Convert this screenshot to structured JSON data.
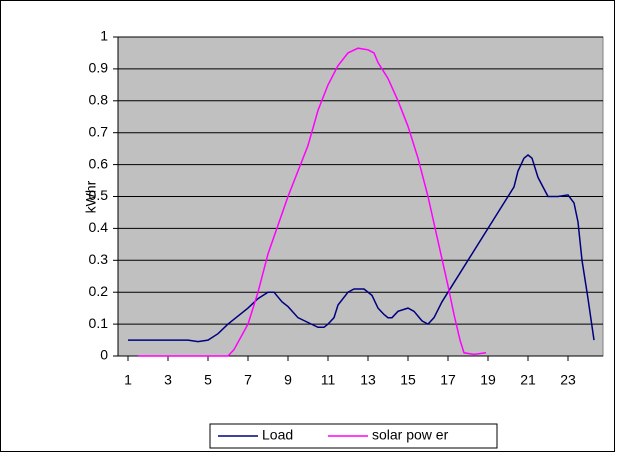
{
  "chart_data": {
    "type": "line",
    "y_label": "kWhr",
    "xlim": [
      0.5,
      24.75
    ],
    "xticks": [
      1,
      3,
      5,
      7,
      9,
      11,
      13,
      15,
      17,
      19,
      21,
      23
    ],
    "ylim": [
      0,
      1
    ],
    "yticks": [
      0,
      0.1,
      0.2,
      0.3,
      0.4,
      0.5,
      0.6,
      0.7,
      0.8,
      0.9,
      1
    ],
    "grid": true,
    "legend": "bottom",
    "series": [
      {
        "name": "Load",
        "color": "#000080",
        "x": [
          1,
          4,
          4.5,
          5,
          5.5,
          6,
          7,
          7.5,
          8,
          8.3,
          8.7,
          9,
          9.5,
          10,
          10.5,
          10.8,
          11,
          11.3,
          11.5,
          12,
          12.3,
          12.8,
          13.2,
          13.5,
          13.8,
          14,
          14.2,
          14.5,
          15,
          15.3,
          15.7,
          16,
          16.3,
          16.7,
          17,
          20,
          20.3,
          20.5,
          20.8,
          21,
          21.2,
          21.5,
          22,
          22.5,
          23,
          23.3,
          23.5,
          23.7,
          24,
          24.3
        ],
        "values": [
          0.05,
          0.05,
          0.045,
          0.05,
          0.07,
          0.1,
          0.15,
          0.18,
          0.2,
          0.2,
          0.17,
          0.155,
          0.12,
          0.105,
          0.09,
          0.09,
          0.1,
          0.12,
          0.16,
          0.2,
          0.21,
          0.21,
          0.19,
          0.15,
          0.13,
          0.12,
          0.12,
          0.14,
          0.15,
          0.14,
          0.11,
          0.1,
          0.12,
          0.17,
          0.2,
          0.5,
          0.53,
          0.58,
          0.62,
          0.63,
          0.62,
          0.56,
          0.5,
          0.5,
          0.505,
          0.48,
          0.42,
          0.3,
          0.18,
          0.05
        ]
      },
      {
        "name": "solar pow er",
        "color": "#ff00ff",
        "x": [
          1.5,
          6,
          6.3,
          7,
          7.5,
          8,
          9,
          10,
          10.5,
          11,
          11.5,
          12,
          12.5,
          13,
          13.3,
          13.5,
          14,
          14.5,
          15,
          15.5,
          16,
          16.5,
          17,
          17.3,
          17.6,
          17.8,
          18.3,
          18.9
        ],
        "values": [
          0,
          0,
          0.02,
          0.1,
          0.2,
          0.32,
          0.5,
          0.66,
          0.77,
          0.85,
          0.91,
          0.95,
          0.965,
          0.96,
          0.95,
          0.92,
          0.87,
          0.8,
          0.72,
          0.62,
          0.5,
          0.36,
          0.22,
          0.13,
          0.05,
          0.01,
          0.005,
          0.01
        ]
      }
    ]
  }
}
